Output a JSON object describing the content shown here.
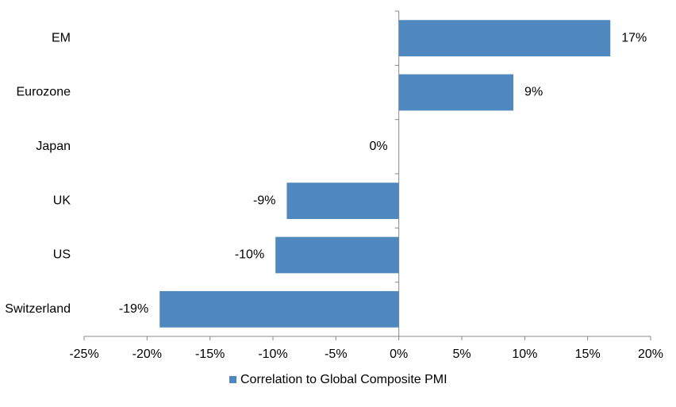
{
  "chart_data": {
    "type": "bar",
    "orientation": "horizontal",
    "categories": [
      "EM",
      "Eurozone",
      "Japan",
      "UK",
      "US",
      "Switzerland"
    ],
    "series": [
      {
        "name": "Correlation to Global Composite PMI",
        "color": "#4f88be",
        "values": [
          16.8,
          9.1,
          0,
          -8.9,
          -9.8,
          -19.0
        ],
        "value_labels": [
          "17%",
          "9%",
          "0%",
          "-9%",
          "-10%",
          "-19%"
        ]
      }
    ],
    "xlim": [
      -25,
      20
    ],
    "xticks": [
      {
        "value": -25,
        "label": "-25%"
      },
      {
        "value": -20,
        "label": "-20%"
      },
      {
        "value": -15,
        "label": "-15%"
      },
      {
        "value": -10,
        "label": "-10%"
      },
      {
        "value": -5,
        "label": "-5%"
      },
      {
        "value": 0,
        "label": "0%"
      },
      {
        "value": 5,
        "label": "5%"
      },
      {
        "value": 10,
        "label": "10%"
      },
      {
        "value": 15,
        "label": "15%"
      },
      {
        "value": 20,
        "label": "20%"
      }
    ],
    "grid": false,
    "legend": "bottom"
  }
}
